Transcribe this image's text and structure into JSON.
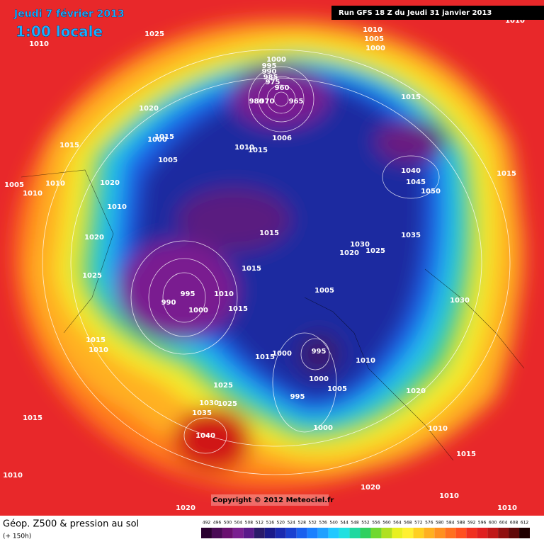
{
  "header": {
    "date": "Jeudi 7 février 2013",
    "time": "1:00 locale",
    "run": "Run GFS 18 Z du Jeudi 31 janvier 2013"
  },
  "footer": {
    "title": "Géop. Z500 & pression au sol",
    "subtitle": "(+ 150h)",
    "copyright": "Copyright © 2012 Meteociel.fr"
  },
  "legend": {
    "values": [
      492,
      496,
      500,
      504,
      508,
      512,
      516,
      520,
      524,
      528,
      532,
      536,
      540,
      544,
      548,
      552,
      556,
      560,
      564,
      568,
      572,
      576,
      580,
      584,
      588,
      592,
      596,
      600,
      604,
      608,
      612
    ],
    "colors": [
      "#2a0030",
      "#4a0a55",
      "#6a1070",
      "#7a2090",
      "#5a1a8a",
      "#2a1a6a",
      "#1a1a8a",
      "#1a2ab0",
      "#1a40d0",
      "#1a60ee",
      "#1a80ff",
      "#20a0ff",
      "#20c8ff",
      "#20e0e0",
      "#20d8a0",
      "#30d060",
      "#70d830",
      "#b0e020",
      "#e8f020",
      "#fff030",
      "#ffd020",
      "#ffb020",
      "#ff9020",
      "#ff7020",
      "#ff5020",
      "#f03020",
      "#e02020",
      "#c01818",
      "#901010",
      "#600808",
      "#200000"
    ]
  },
  "isobar_labels": [
    "1025",
    "1010",
    "1010",
    "1005",
    "1000",
    "1010",
    "1000",
    "995",
    "990",
    "985",
    "975",
    "960",
    "980",
    "970",
    "965",
    "1015",
    "1020",
    "1015",
    "1000",
    "1005",
    "1015",
    "1010",
    "1015",
    "1006",
    "1040",
    "1045",
    "1050",
    "1015",
    "1005",
    "1010",
    "1010",
    "1020",
    "1010",
    "1020",
    "1015",
    "1035",
    "1030",
    "1025",
    "1020",
    "1025",
    "1015",
    "995",
    "990",
    "1010",
    "1000",
    "1015",
    "1005",
    "1030",
    "1015",
    "1010",
    "1015",
    "1000",
    "995",
    "1010",
    "1000",
    "1005",
    "995",
    "1020",
    "1025",
    "1030",
    "1025",
    "1035",
    "1015",
    "1040",
    "1000",
    "1010",
    "1015",
    "1020",
    "1010",
    "1010",
    "1020",
    "1010"
  ]
}
